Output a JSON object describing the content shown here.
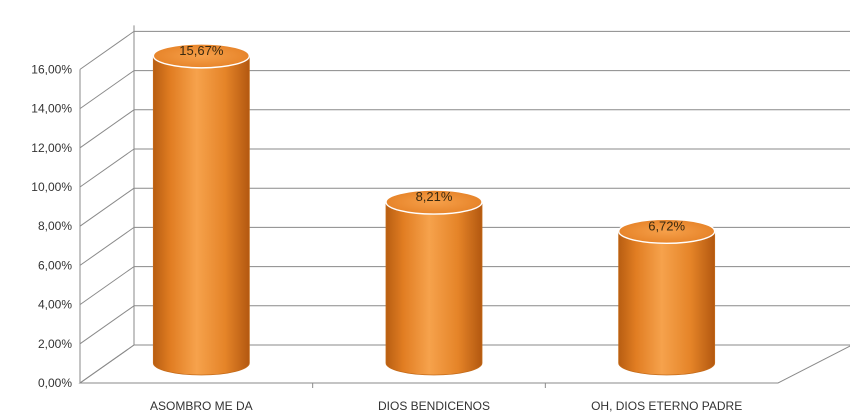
{
  "chart_data": {
    "type": "bar",
    "categories": [
      "ASOMBRO ME DA",
      "DIOS BENDICENOS",
      "OH, DIOS ETERNO PADRE"
    ],
    "values": [
      15.67,
      8.21,
      6.72
    ],
    "data_labels": [
      "15,67%",
      "8,21%",
      "6,72%"
    ],
    "y_ticks": [
      "0,00%",
      "2,00%",
      "4,00%",
      "6,00%",
      "8,00%",
      "10,00%",
      "12,00%",
      "14,00%",
      "16,00%"
    ],
    "ylim": [
      0,
      16
    ],
    "grid": true,
    "legend": "none",
    "style": "3d-cylinder",
    "bar_color": "#E8872E",
    "title": "",
    "xlabel": "",
    "ylabel": ""
  }
}
